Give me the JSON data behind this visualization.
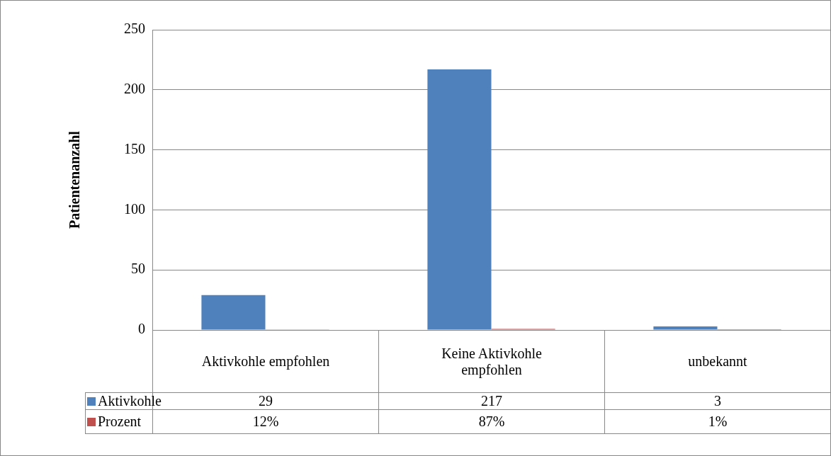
{
  "chart_data": {
    "type": "bar",
    "ylabel": "Patientenanzahl",
    "categories": [
      "Aktivkohle empfohlen",
      "Keine Aktivkohle empfohlen",
      "unbekannt"
    ],
    "series": [
      {
        "name": "Aktivkohle",
        "color": "#4f81bd",
        "values": [
          29,
          217,
          3
        ],
        "value_labels": [
          "29",
          "217",
          "3"
        ]
      },
      {
        "name": "Prozent",
        "color": "#c0504d",
        "values": [
          0.12,
          0.87,
          0.01
        ],
        "value_labels": [
          "12%",
          "87%",
          "1%"
        ]
      }
    ],
    "ylim": [
      0,
      250
    ],
    "yticks": [
      0,
      50,
      100,
      150,
      200,
      250
    ],
    "grid": "y",
    "legend": "bottom"
  }
}
